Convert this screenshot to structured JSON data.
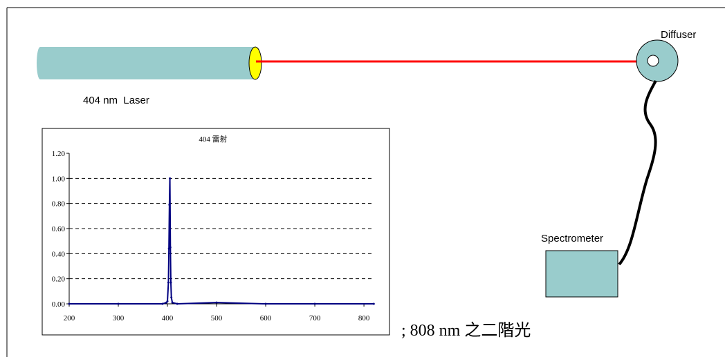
{
  "diagram": {
    "diffuser": "Diffuser",
    "laser": "404 nm  Laser",
    "spectrometer": "Spectrometer",
    "note": "; 808 nm 之二階光"
  },
  "chart_data": {
    "type": "line",
    "title": "404 雷射",
    "x": [
      200,
      300,
      390,
      398,
      400,
      402,
      403,
      404,
      405,
      406,
      407,
      408,
      410,
      420,
      500,
      600,
      700,
      820
    ],
    "series": [
      {
        "color": "#000080",
        "values": [
          0,
          0,
          0,
          0.01,
          0.02,
          0.17,
          0.44,
          0.79,
          1.0,
          0.45,
          0.17,
          0.05,
          0.01,
          0,
          0.01,
          0,
          0,
          0
        ]
      }
    ],
    "xlim": [
      200,
      821
    ],
    "xticks": [
      200,
      300,
      400,
      500,
      600,
      700,
      800
    ],
    "ylim": [
      0,
      1.2
    ],
    "yticks": [
      {
        "value": 0,
        "label": "0.00"
      },
      {
        "value": 0.2,
        "label": "0.20"
      },
      {
        "value": 0.4,
        "label": "0.40"
      },
      {
        "value": 0.6,
        "label": "0.60"
      },
      {
        "value": 0.8,
        "label": "0.80"
      },
      {
        "value": 1.0,
        "label": "1.00"
      },
      {
        "value": 1.2,
        "label": "1.20"
      }
    ],
    "grid": true
  }
}
